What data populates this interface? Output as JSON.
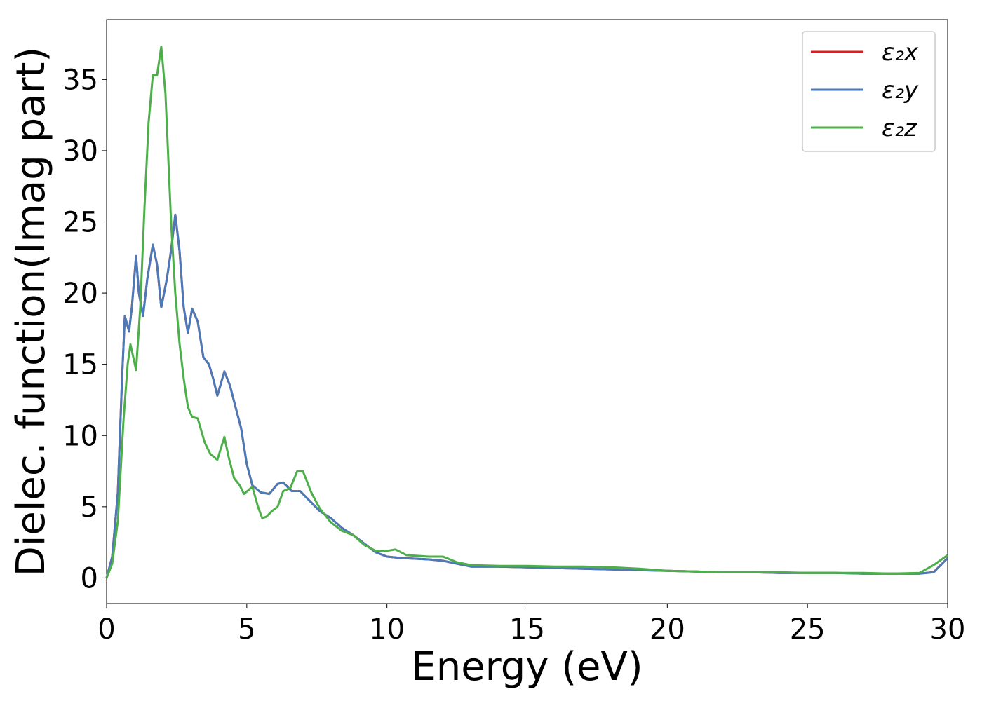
{
  "chart_data": {
    "type": "line",
    "title": "",
    "xlabel": "Energy (eV)",
    "ylabel": "Dielec. function(Imag part)",
    "xlim": [
      0,
      30
    ],
    "ylim": [
      -1.8,
      39.2
    ],
    "xticks": [
      0,
      5,
      10,
      15,
      20,
      25,
      30
    ],
    "yticks": [
      0,
      5,
      10,
      15,
      20,
      25,
      30,
      35
    ],
    "grid": false,
    "legend_position": "top-right",
    "series": [
      {
        "name": "ε₂x",
        "color": "#e41a1c",
        "points": [
          [
            0,
            0
          ],
          [
            0.2,
            1.5
          ],
          [
            0.4,
            6
          ],
          [
            0.55,
            14
          ],
          [
            0.65,
            18.4
          ],
          [
            0.8,
            17.3
          ],
          [
            0.9,
            19
          ],
          [
            1.05,
            22.6
          ],
          [
            1.15,
            20
          ],
          [
            1.3,
            18.4
          ],
          [
            1.45,
            21
          ],
          [
            1.65,
            23.4
          ],
          [
            1.8,
            22
          ],
          [
            1.95,
            19
          ],
          [
            2.15,
            21
          ],
          [
            2.3,
            23
          ],
          [
            2.45,
            25.5
          ],
          [
            2.6,
            23
          ],
          [
            2.75,
            19
          ],
          [
            2.9,
            17.2
          ],
          [
            3.05,
            18.9
          ],
          [
            3.25,
            18
          ],
          [
            3.45,
            15.5
          ],
          [
            3.65,
            15
          ],
          [
            3.8,
            14
          ],
          [
            3.95,
            12.8
          ],
          [
            4.2,
            14.5
          ],
          [
            4.4,
            13.5
          ],
          [
            4.6,
            12
          ],
          [
            4.8,
            10.5
          ],
          [
            5.0,
            8
          ],
          [
            5.2,
            6.5
          ],
          [
            5.5,
            6
          ],
          [
            5.8,
            5.9
          ],
          [
            6.1,
            6.6
          ],
          [
            6.3,
            6.7
          ],
          [
            6.6,
            6.1
          ],
          [
            6.9,
            6.1
          ],
          [
            7.2,
            5.5
          ],
          [
            7.6,
            4.7
          ],
          [
            8.0,
            4.2
          ],
          [
            8.4,
            3.5
          ],
          [
            8.8,
            3
          ],
          [
            9.2,
            2.4
          ],
          [
            9.6,
            1.8
          ],
          [
            10,
            1.5
          ],
          [
            10.5,
            1.4
          ],
          [
            11,
            1.35
          ],
          [
            11.5,
            1.3
          ],
          [
            12,
            1.2
          ],
          [
            12.5,
            1
          ],
          [
            13,
            0.8
          ],
          [
            14,
            0.8
          ],
          [
            15,
            0.75
          ],
          [
            16,
            0.7
          ],
          [
            17,
            0.65
          ],
          [
            18,
            0.6
          ],
          [
            19,
            0.55
          ],
          [
            20,
            0.5
          ],
          [
            21,
            0.45
          ],
          [
            22,
            0.4
          ],
          [
            23,
            0.4
          ],
          [
            24,
            0.35
          ],
          [
            25,
            0.35
          ],
          [
            26,
            0.35
          ],
          [
            27,
            0.3
          ],
          [
            28,
            0.3
          ],
          [
            29,
            0.3
          ],
          [
            29.5,
            0.4
          ],
          [
            30,
            1.4
          ]
        ]
      },
      {
        "name": "ε₂y",
        "color": "#4a7ab7",
        "points": [
          [
            0,
            0
          ],
          [
            0.2,
            1.5
          ],
          [
            0.4,
            6
          ],
          [
            0.55,
            14
          ],
          [
            0.65,
            18.4
          ],
          [
            0.8,
            17.3
          ],
          [
            0.9,
            19
          ],
          [
            1.05,
            22.6
          ],
          [
            1.15,
            20
          ],
          [
            1.3,
            18.4
          ],
          [
            1.45,
            21
          ],
          [
            1.65,
            23.4
          ],
          [
            1.8,
            22
          ],
          [
            1.95,
            19
          ],
          [
            2.15,
            21
          ],
          [
            2.3,
            23
          ],
          [
            2.45,
            25.5
          ],
          [
            2.6,
            23
          ],
          [
            2.75,
            19
          ],
          [
            2.9,
            17.2
          ],
          [
            3.05,
            18.9
          ],
          [
            3.25,
            18
          ],
          [
            3.45,
            15.5
          ],
          [
            3.65,
            15
          ],
          [
            3.8,
            14
          ],
          [
            3.95,
            12.8
          ],
          [
            4.2,
            14.5
          ],
          [
            4.4,
            13.5
          ],
          [
            4.6,
            12
          ],
          [
            4.8,
            10.5
          ],
          [
            5.0,
            8
          ],
          [
            5.2,
            6.5
          ],
          [
            5.5,
            6
          ],
          [
            5.8,
            5.9
          ],
          [
            6.1,
            6.6
          ],
          [
            6.3,
            6.7
          ],
          [
            6.6,
            6.1
          ],
          [
            6.9,
            6.1
          ],
          [
            7.2,
            5.5
          ],
          [
            7.6,
            4.7
          ],
          [
            8.0,
            4.2
          ],
          [
            8.4,
            3.5
          ],
          [
            8.8,
            3
          ],
          [
            9.2,
            2.4
          ],
          [
            9.6,
            1.8
          ],
          [
            10,
            1.5
          ],
          [
            10.5,
            1.4
          ],
          [
            11,
            1.35
          ],
          [
            11.5,
            1.3
          ],
          [
            12,
            1.2
          ],
          [
            12.5,
            1
          ],
          [
            13,
            0.8
          ],
          [
            14,
            0.8
          ],
          [
            15,
            0.75
          ],
          [
            16,
            0.7
          ],
          [
            17,
            0.65
          ],
          [
            18,
            0.6
          ],
          [
            19,
            0.55
          ],
          [
            20,
            0.5
          ],
          [
            21,
            0.45
          ],
          [
            22,
            0.4
          ],
          [
            23,
            0.4
          ],
          [
            24,
            0.35
          ],
          [
            25,
            0.35
          ],
          [
            26,
            0.35
          ],
          [
            27,
            0.3
          ],
          [
            28,
            0.3
          ],
          [
            29,
            0.3
          ],
          [
            29.5,
            0.4
          ],
          [
            30,
            1.4
          ]
        ]
      },
      {
        "name": "ε₂z",
        "color": "#4daf4a",
        "points": [
          [
            0,
            0
          ],
          [
            0.2,
            1
          ],
          [
            0.4,
            4
          ],
          [
            0.6,
            11
          ],
          [
            0.75,
            15
          ],
          [
            0.85,
            16.4
          ],
          [
            0.95,
            15.5
          ],
          [
            1.05,
            14.6
          ],
          [
            1.2,
            19
          ],
          [
            1.35,
            26
          ],
          [
            1.5,
            32
          ],
          [
            1.65,
            35.3
          ],
          [
            1.8,
            35.3
          ],
          [
            1.95,
            37.3
          ],
          [
            2.1,
            34
          ],
          [
            2.3,
            25
          ],
          [
            2.45,
            20
          ],
          [
            2.6,
            16.5
          ],
          [
            2.75,
            14
          ],
          [
            2.9,
            12
          ],
          [
            3.05,
            11.3
          ],
          [
            3.25,
            11.2
          ],
          [
            3.5,
            9.5
          ],
          [
            3.7,
            8.7
          ],
          [
            3.95,
            8.3
          ],
          [
            4.2,
            9.9
          ],
          [
            4.35,
            8.5
          ],
          [
            4.55,
            7
          ],
          [
            4.75,
            6.5
          ],
          [
            4.9,
            5.9
          ],
          [
            5.2,
            6.4
          ],
          [
            5.4,
            5
          ],
          [
            5.55,
            4.2
          ],
          [
            5.7,
            4.3
          ],
          [
            5.9,
            4.7
          ],
          [
            6.1,
            5
          ],
          [
            6.3,
            6.1
          ],
          [
            6.55,
            6.3
          ],
          [
            6.8,
            7.5
          ],
          [
            7.0,
            7.5
          ],
          [
            7.3,
            6
          ],
          [
            7.6,
            4.9
          ],
          [
            8.0,
            3.9
          ],
          [
            8.4,
            3.3
          ],
          [
            8.8,
            3
          ],
          [
            9.2,
            2.3
          ],
          [
            9.6,
            1.9
          ],
          [
            10,
            1.9
          ],
          [
            10.3,
            2
          ],
          [
            10.7,
            1.6
          ],
          [
            11.5,
            1.5
          ],
          [
            12,
            1.5
          ],
          [
            12.5,
            1.1
          ],
          [
            13,
            0.9
          ],
          [
            14,
            0.85
          ],
          [
            15,
            0.85
          ],
          [
            16,
            0.8
          ],
          [
            17,
            0.8
          ],
          [
            18,
            0.75
          ],
          [
            19,
            0.65
          ],
          [
            20,
            0.5
          ],
          [
            21,
            0.45
          ],
          [
            22,
            0.4
          ],
          [
            23,
            0.4
          ],
          [
            24,
            0.4
          ],
          [
            25,
            0.35
          ],
          [
            26,
            0.35
          ],
          [
            27,
            0.35
          ],
          [
            28,
            0.3
          ],
          [
            29,
            0.35
          ],
          [
            29.5,
            0.9
          ],
          [
            30,
            1.6
          ]
        ]
      }
    ]
  }
}
